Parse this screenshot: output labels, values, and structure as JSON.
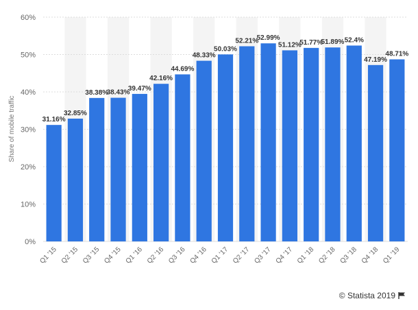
{
  "chart_data": {
    "type": "bar",
    "title": "",
    "xlabel": "",
    "ylabel": "Share of mobile traffic",
    "ylim": [
      0,
      60
    ],
    "yticks": [
      "0%",
      "10%",
      "20%",
      "30%",
      "40%",
      "50%",
      "60%"
    ],
    "grid": true,
    "categories": [
      "Q1 '15",
      "Q2 '15",
      "Q3 '15",
      "Q4 '15",
      "Q1 '16",
      "Q2 '16",
      "Q3 '16",
      "Q4 '16",
      "Q1 '17",
      "Q2 '17",
      "Q3 '17",
      "Q4 '17",
      "Q1 '18",
      "Q2 '18",
      "Q3 '18",
      "Q4 '18",
      "Q1 '19"
    ],
    "values": [
      31.16,
      32.85,
      38.38,
      38.43,
      39.47,
      42.16,
      44.69,
      48.33,
      50.03,
      52.21,
      52.99,
      51.12,
      51.77,
      51.89,
      52.4,
      47.19,
      48.71
    ],
    "data_labels": [
      "31.16%",
      "32.85%",
      "38.38%",
      "38.43%",
      "39.47%",
      "42.16%",
      "44.69%",
      "48.33%",
      "50.03%",
      "52.21%",
      "52.99%",
      "51.12%",
      "51.77%",
      "51.89%",
      "52.4%",
      "47.19%",
      "48.71%"
    ],
    "colors": {
      "bar": "#2f76e1",
      "band": "#f4f4f4",
      "grid": "#dcdcdc"
    }
  },
  "credit": {
    "text": "© Statista 2019",
    "icon": "flag-icon"
  }
}
